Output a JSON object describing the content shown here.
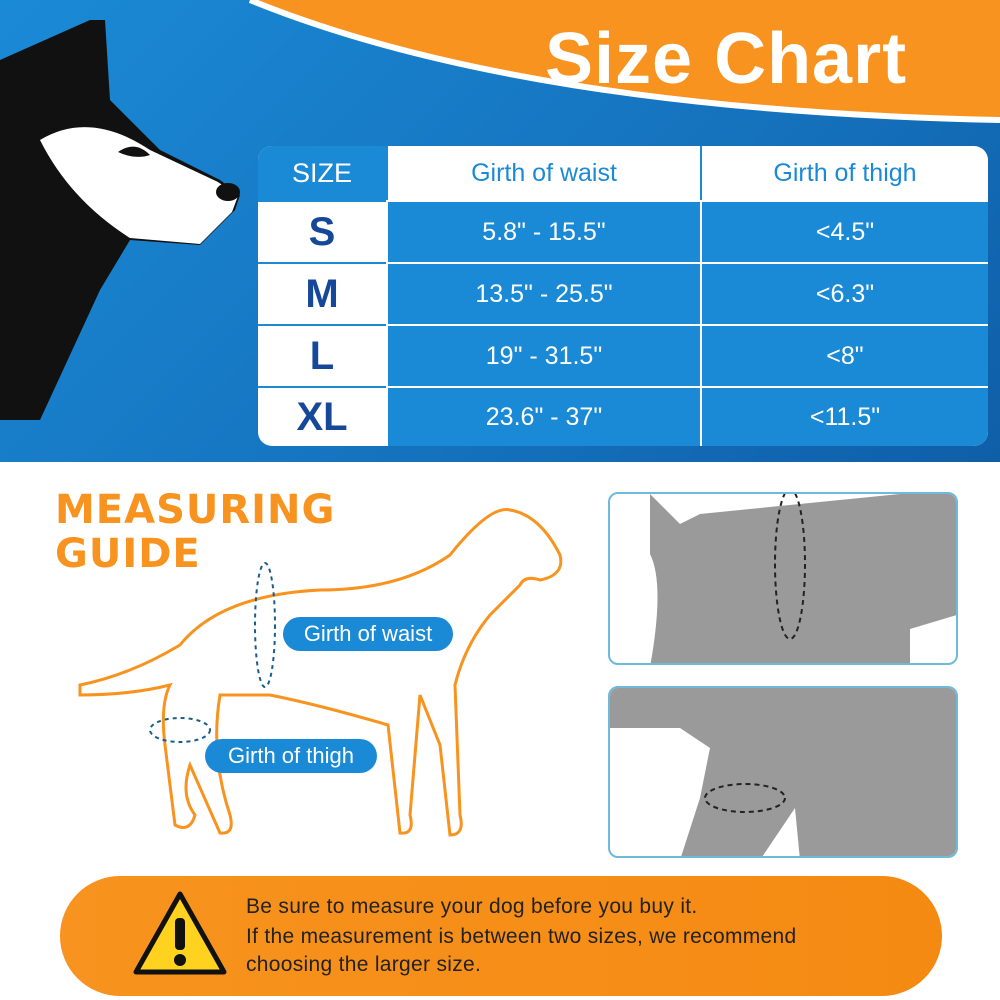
{
  "title": "Size Chart",
  "table": {
    "headers": [
      "SIZE",
      "Girth of waist",
      "Girth of thigh"
    ],
    "rows": [
      {
        "size": "S",
        "waist": "5.8\" - 15.5\"",
        "thigh": "<4.5\""
      },
      {
        "size": "M",
        "waist": "13.5\" - 25.5\"",
        "thigh": "<6.3\""
      },
      {
        "size": "L",
        "waist": "19\" - 31.5\"",
        "thigh": "<8\""
      },
      {
        "size": "XL",
        "waist": "23.6\" - 37\"",
        "thigh": "<11.5\""
      }
    ]
  },
  "guide": {
    "line1": "MEASURING",
    "line2": "GUIDE",
    "waist_label": "Girth of waist",
    "thigh_label": "Girth of thigh"
  },
  "notice": {
    "line1": "Be sure to measure your dog before you buy it.",
    "line2": "If the measurement is between two sizes, we recommend",
    "line3": "choosing the larger size."
  },
  "colors": {
    "blue": "#1b8ad6",
    "orange": "#f7931e",
    "navy": "#16489a"
  }
}
